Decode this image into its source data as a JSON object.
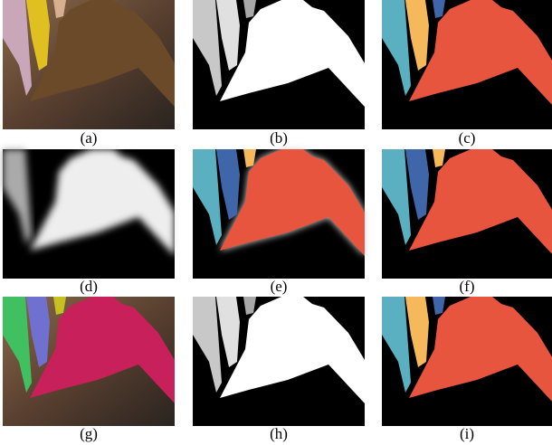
{
  "panels": [
    {
      "label": "(a)"
    },
    {
      "label": "(b)"
    },
    {
      "label": "(c)"
    },
    {
      "label": "(d)"
    },
    {
      "label": "(e)"
    },
    {
      "label": "(f)"
    },
    {
      "label": "(g)"
    },
    {
      "label": "(h)"
    },
    {
      "label": "(i)"
    }
  ]
}
